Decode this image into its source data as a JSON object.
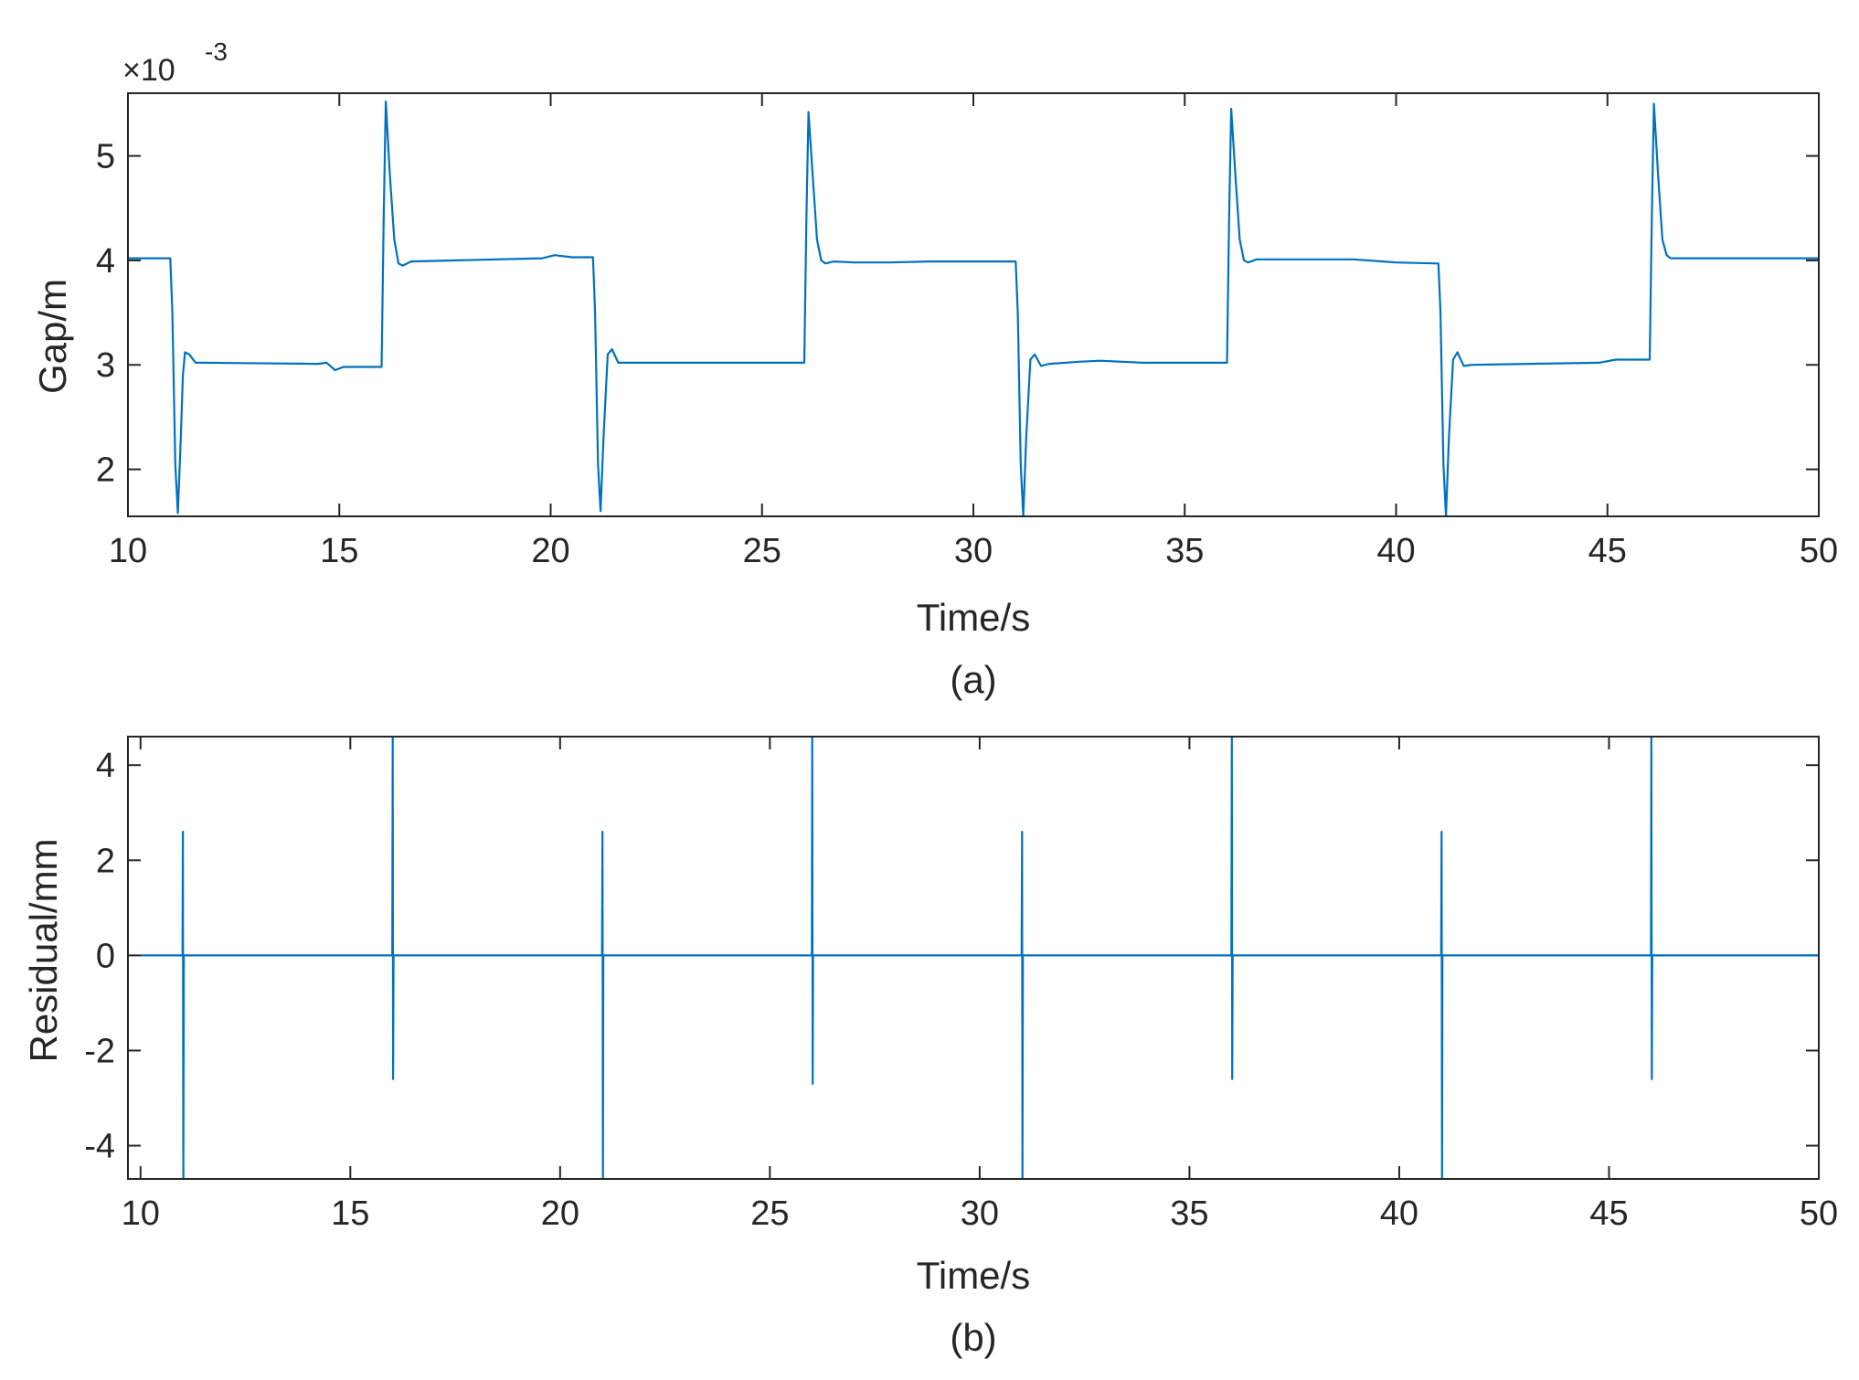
{
  "colors": {
    "trace": "#0072BD",
    "axis": "#262626"
  },
  "chart_data": [
    {
      "type": "line",
      "caption": "(a)",
      "xlabel": "Time/s",
      "ylabel": "Gap/m",
      "y_exponent_label": "×10",
      "y_exponent_power": "-3",
      "y_scale_factor": 0.001,
      "xlim": [
        10,
        50
      ],
      "ylim": [
        1.55,
        5.6
      ],
      "xticks": [
        10,
        15,
        20,
        25,
        30,
        35,
        40,
        45,
        50
      ],
      "xtick_labels": [
        "10",
        "15",
        "20",
        "25",
        "30",
        "35",
        "40",
        "45",
        "50"
      ],
      "yticks": [
        2,
        3,
        4,
        5
      ],
      "ytick_labels": [
        "2",
        "3",
        "4",
        "5"
      ],
      "grid": false,
      "series": [
        {
          "x": [
            10,
            11.0,
            11.05,
            11.12,
            11.18,
            11.25,
            11.3,
            11.35,
            11.45,
            11.6,
            11.8,
            14.5,
            14.7,
            14.9,
            15.1,
            16.0,
            16.05,
            16.1,
            16.2,
            16.3,
            16.4,
            16.5,
            16.7,
            19.8,
            20.1,
            20.5,
            21.0,
            21.05,
            21.12,
            21.18,
            21.25,
            21.35,
            21.45,
            21.6,
            21.8,
            25.0,
            26.0,
            26.05,
            26.1,
            26.2,
            26.3,
            26.4,
            26.5,
            26.7,
            27.2,
            28.0,
            29.0,
            31.0,
            31.05,
            31.12,
            31.18,
            31.25,
            31.35,
            31.45,
            31.6,
            31.8,
            32.5,
            33.0,
            34.0,
            36.0,
            36.05,
            36.1,
            36.2,
            36.3,
            36.4,
            36.5,
            36.7,
            39.0,
            40.0,
            41.0,
            41.05,
            41.12,
            41.18,
            41.25,
            41.35,
            41.45,
            41.6,
            41.8,
            44.8,
            45.2,
            46.0,
            46.05,
            46.1,
            46.2,
            46.3,
            46.4,
            46.5,
            46.7,
            50
          ],
          "y": [
            4.02,
            4.02,
            3.5,
            2.05,
            1.58,
            2.3,
            2.9,
            3.12,
            3.1,
            3.02,
            3.02,
            3.01,
            3.02,
            2.95,
            2.98,
            2.98,
            4.4,
            5.52,
            4.8,
            4.2,
            3.97,
            3.95,
            3.99,
            4.02,
            4.05,
            4.03,
            4.03,
            3.5,
            2.05,
            1.6,
            2.3,
            3.1,
            3.15,
            3.02,
            3.02,
            3.02,
            3.02,
            4.4,
            5.42,
            4.8,
            4.2,
            4.0,
            3.97,
            3.99,
            3.98,
            3.98,
            3.99,
            3.99,
            3.5,
            2.05,
            1.55,
            2.3,
            3.05,
            3.1,
            2.99,
            3.01,
            3.03,
            3.04,
            3.02,
            3.02,
            4.4,
            5.45,
            4.8,
            4.2,
            4.0,
            3.98,
            4.01,
            4.01,
            3.98,
            3.97,
            3.5,
            2.05,
            1.55,
            2.3,
            3.05,
            3.12,
            2.99,
            3.0,
            3.02,
            3.05,
            3.05,
            4.4,
            5.5,
            4.8,
            4.2,
            4.05,
            4.02,
            4.02,
            4.02
          ]
        }
      ]
    },
    {
      "type": "line",
      "caption": "(b)",
      "xlabel": "Time/s",
      "ylabel": "Residual/mm",
      "xlim": [
        9.7,
        50
      ],
      "ylim": [
        -4.7,
        4.6
      ],
      "xticks": [
        10,
        15,
        20,
        25,
        30,
        35,
        40,
        45,
        50
      ],
      "xtick_labels": [
        "10",
        "15",
        "20",
        "25",
        "30",
        "35",
        "40",
        "45",
        "50"
      ],
      "yticks": [
        -4,
        -2,
        0,
        2,
        4
      ],
      "ytick_labels": [
        "-4",
        "-2",
        "0",
        "2",
        "4"
      ],
      "grid": false,
      "series": [
        {
          "x": [
            10,
            11.0,
            11.01,
            11.02,
            11.03,
            16.0,
            16.01,
            16.02,
            16.03,
            21.0,
            21.01,
            21.02,
            21.03,
            26.0,
            26.01,
            26.02,
            26.03,
            31.0,
            31.01,
            31.02,
            31.03,
            36.0,
            36.01,
            36.02,
            36.03,
            41.0,
            41.01,
            41.02,
            41.03,
            46.0,
            46.01,
            46.02,
            46.03,
            50
          ],
          "y": [
            0,
            0,
            2.6,
            -4.7,
            0,
            0,
            4.6,
            -2.6,
            0,
            0,
            2.6,
            -4.7,
            0,
            0,
            4.6,
            -2.7,
            0,
            0,
            2.6,
            -4.7,
            0,
            0,
            4.6,
            -2.6,
            0,
            0,
            2.6,
            -4.7,
            0,
            0,
            4.6,
            -2.6,
            0,
            0
          ]
        }
      ]
    }
  ]
}
